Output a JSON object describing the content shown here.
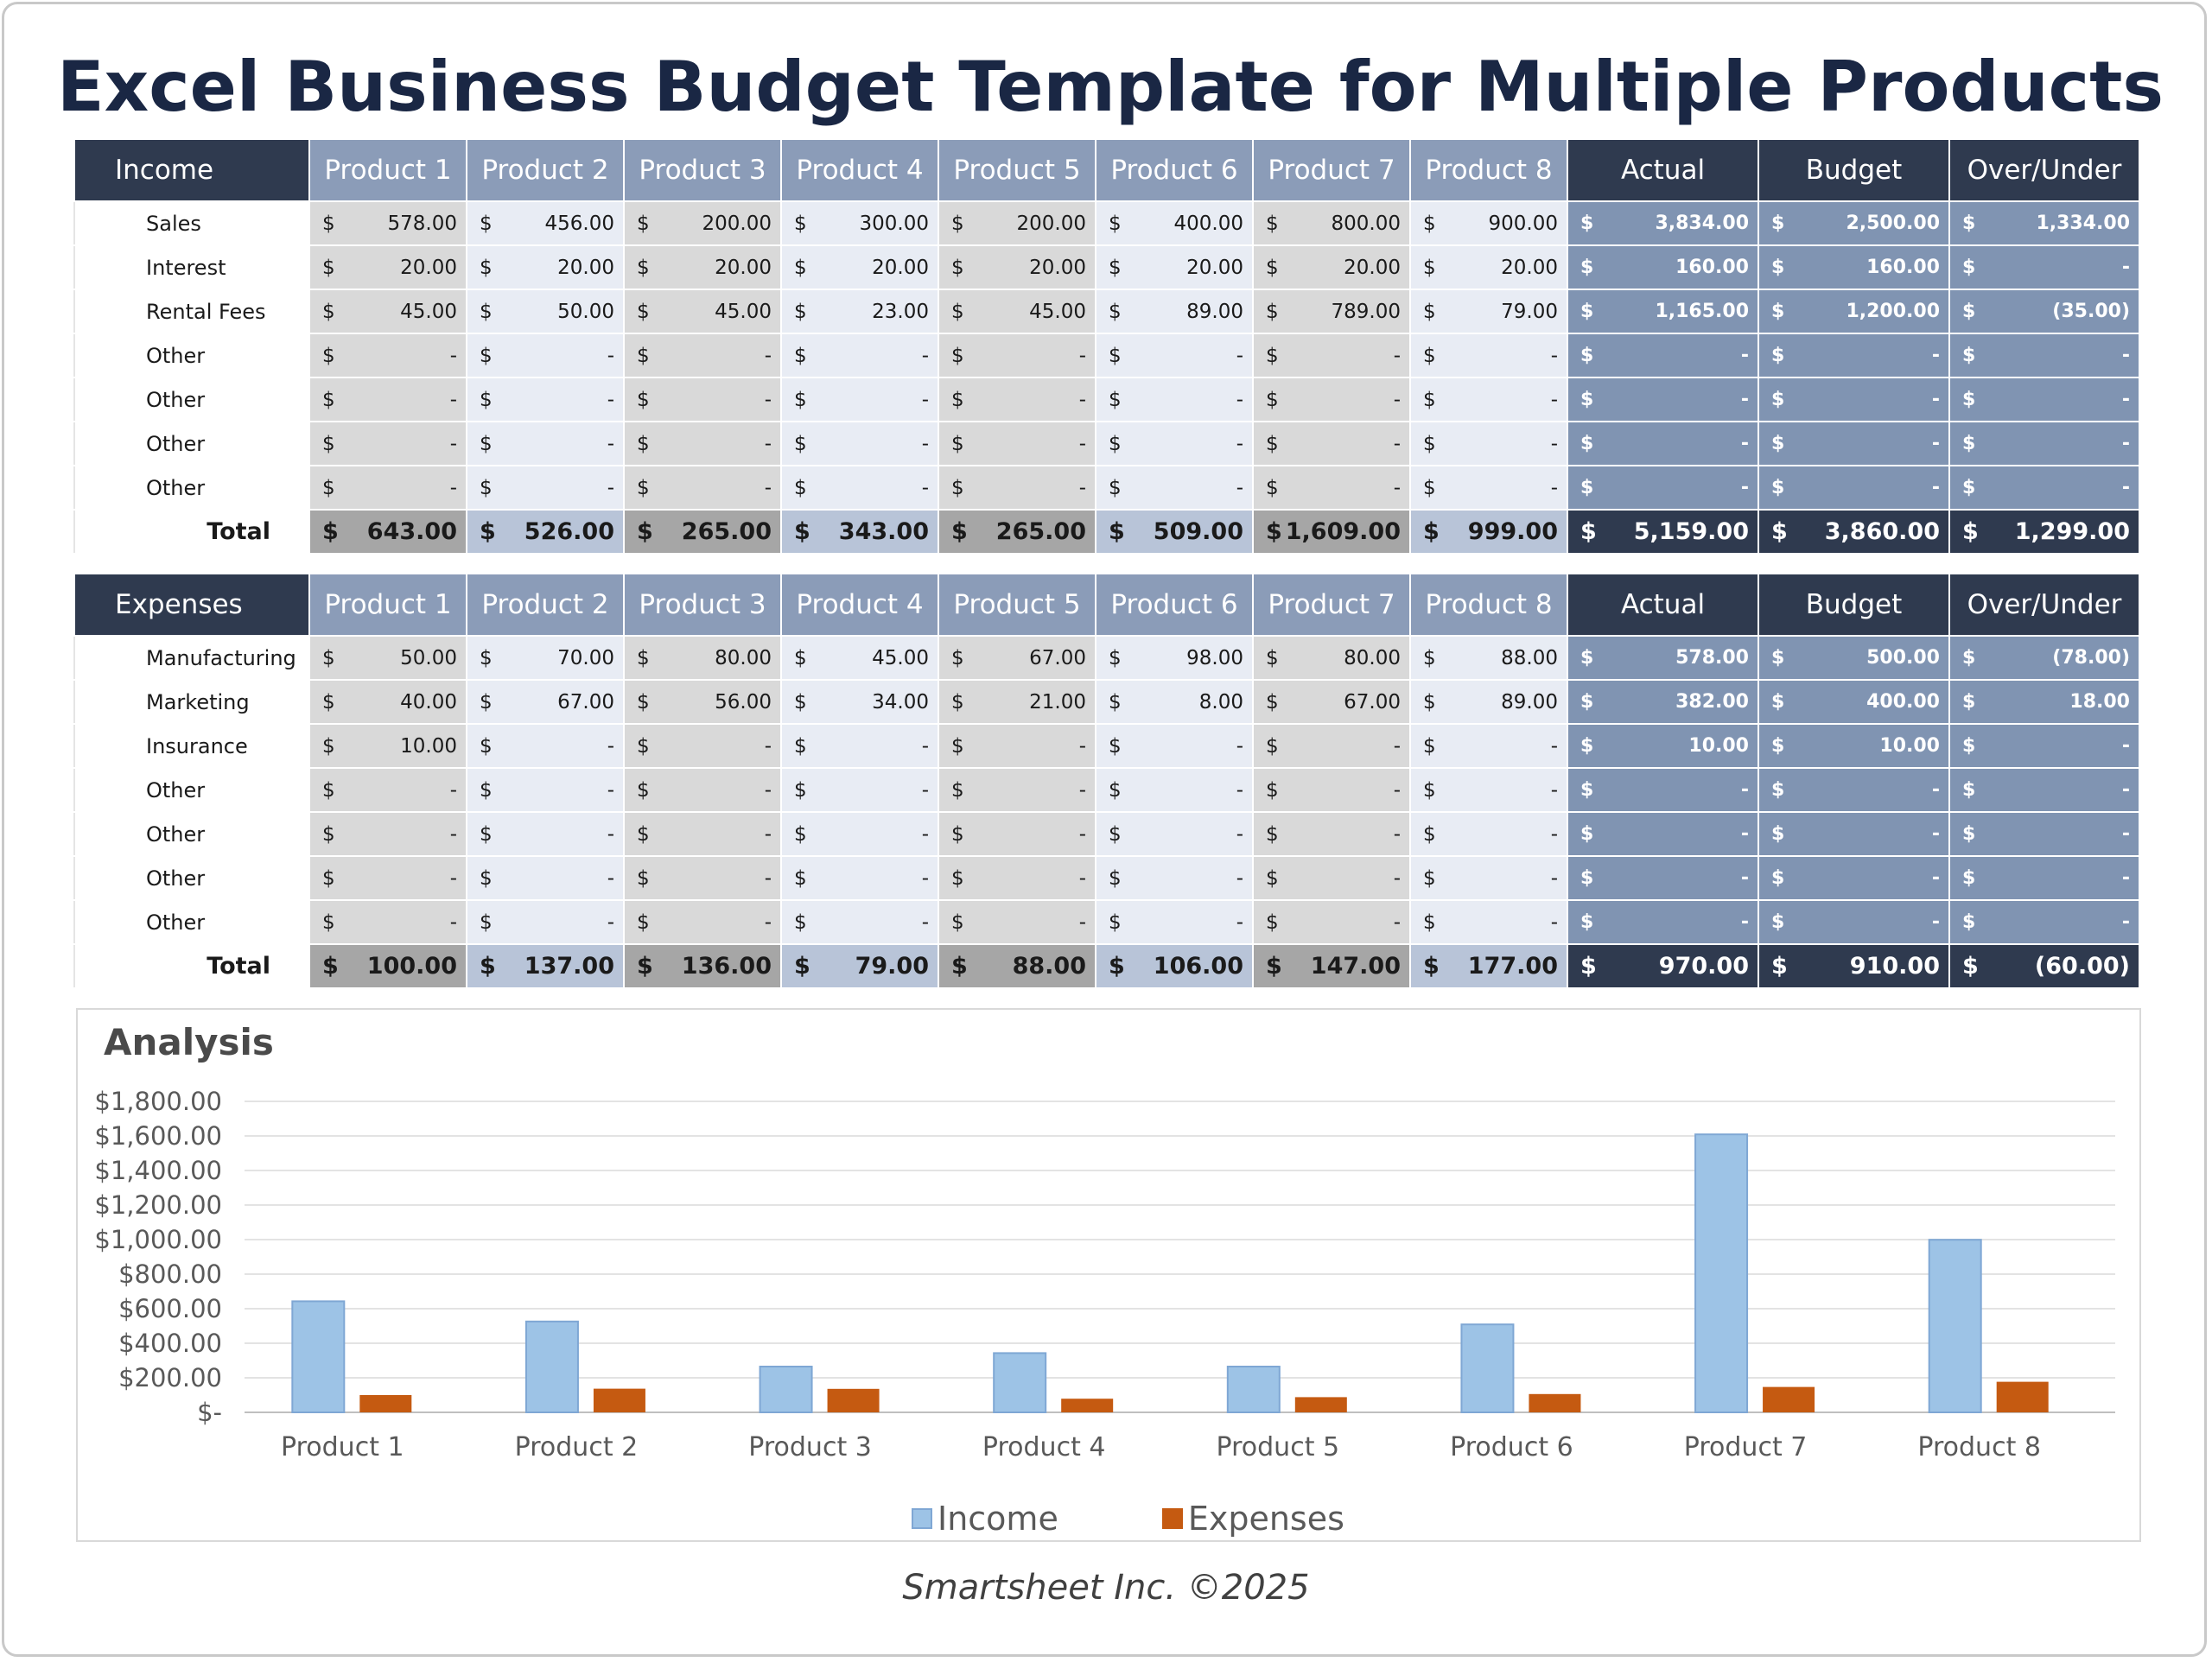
{
  "title": "Excel Business Budget Template for Multiple Products",
  "products": [
    "Product 1",
    "Product 2",
    "Product 3",
    "Product 4",
    "Product 5",
    "Product 6",
    "Product 7",
    "Product 8"
  ],
  "summary_headers": [
    "Actual",
    "Budget",
    "Over/Under"
  ],
  "currency_symbol": "$",
  "income": {
    "header": "Income",
    "rows": [
      {
        "label": "Sales",
        "values": [
          "578.00",
          "456.00",
          "200.00",
          "300.00",
          "200.00",
          "400.00",
          "800.00",
          "900.00"
        ],
        "summary": [
          "3,834.00",
          "2,500.00",
          "1,334.00"
        ]
      },
      {
        "label": "Interest",
        "values": [
          "20.00",
          "20.00",
          "20.00",
          "20.00",
          "20.00",
          "20.00",
          "20.00",
          "20.00"
        ],
        "summary": [
          "160.00",
          "160.00",
          "-"
        ]
      },
      {
        "label": "Rental Fees",
        "values": [
          "45.00",
          "50.00",
          "45.00",
          "23.00",
          "45.00",
          "89.00",
          "789.00",
          "79.00"
        ],
        "summary": [
          "1,165.00",
          "1,200.00",
          "(35.00)"
        ]
      },
      {
        "label": "Other",
        "values": [
          "-",
          "-",
          "-",
          "-",
          "-",
          "-",
          "-",
          "-"
        ],
        "summary": [
          "-",
          "-",
          "-"
        ]
      },
      {
        "label": "Other",
        "values": [
          "-",
          "-",
          "-",
          "-",
          "-",
          "-",
          "-",
          "-"
        ],
        "summary": [
          "-",
          "-",
          "-"
        ]
      },
      {
        "label": "Other",
        "values": [
          "-",
          "-",
          "-",
          "-",
          "-",
          "-",
          "-",
          "-"
        ],
        "summary": [
          "-",
          "-",
          "-"
        ]
      },
      {
        "label": "Other",
        "values": [
          "-",
          "-",
          "-",
          "-",
          "-",
          "-",
          "-",
          "-"
        ],
        "summary": [
          "-",
          "-",
          "-"
        ]
      }
    ],
    "total": {
      "label": "Total",
      "values": [
        "643.00",
        "526.00",
        "265.00",
        "343.00",
        "265.00",
        "509.00",
        "1,609.00",
        "999.00"
      ],
      "summary": [
        "5,159.00",
        "3,860.00",
        "1,299.00"
      ]
    }
  },
  "expenses": {
    "header": "Expenses",
    "rows": [
      {
        "label": "Manufacturing",
        "values": [
          "50.00",
          "70.00",
          "80.00",
          "45.00",
          "67.00",
          "98.00",
          "80.00",
          "88.00"
        ],
        "summary": [
          "578.00",
          "500.00",
          "(78.00)"
        ]
      },
      {
        "label": "Marketing",
        "values": [
          "40.00",
          "67.00",
          "56.00",
          "34.00",
          "21.00",
          "8.00",
          "67.00",
          "89.00"
        ],
        "summary": [
          "382.00",
          "400.00",
          "18.00"
        ]
      },
      {
        "label": "Insurance",
        "values": [
          "10.00",
          "-",
          "-",
          "-",
          "-",
          "-",
          "-",
          "-"
        ],
        "summary": [
          "10.00",
          "10.00",
          "-"
        ]
      },
      {
        "label": "Other",
        "values": [
          "-",
          "-",
          "-",
          "-",
          "-",
          "-",
          "-",
          "-"
        ],
        "summary": [
          "-",
          "-",
          "-"
        ]
      },
      {
        "label": "Other",
        "values": [
          "-",
          "-",
          "-",
          "-",
          "-",
          "-",
          "-",
          "-"
        ],
        "summary": [
          "-",
          "-",
          "-"
        ]
      },
      {
        "label": "Other",
        "values": [
          "-",
          "-",
          "-",
          "-",
          "-",
          "-",
          "-",
          "-"
        ],
        "summary": [
          "-",
          "-",
          "-"
        ]
      },
      {
        "label": "Other",
        "values": [
          "-",
          "-",
          "-",
          "-",
          "-",
          "-",
          "-",
          "-"
        ],
        "summary": [
          "-",
          "-",
          "-"
        ]
      }
    ],
    "total": {
      "label": "Total",
      "values": [
        "100.00",
        "137.00",
        "136.00",
        "79.00",
        "88.00",
        "106.00",
        "147.00",
        "177.00"
      ],
      "summary": [
        "970.00",
        "910.00",
        "(60.00)"
      ]
    }
  },
  "chart_data": {
    "type": "bar",
    "title": "Analysis",
    "categories": [
      "Product 1",
      "Product 2",
      "Product 3",
      "Product 4",
      "Product 5",
      "Product 6",
      "Product 7",
      "Product 8"
    ],
    "series": [
      {
        "name": "Income",
        "values": [
          643,
          526,
          265,
          343,
          265,
          509,
          1609,
          999
        ],
        "color": "#9dc3e6"
      },
      {
        "name": "Expenses",
        "values": [
          100,
          137,
          136,
          79,
          88,
          106,
          147,
          177
        ],
        "color": "#c55a11"
      }
    ],
    "yticks": [
      "$-",
      "$200.00",
      "$400.00",
      "$600.00",
      "$800.00",
      "$1,000.00",
      "$1,200.00",
      "$1,400.00",
      "$1,600.00",
      "$1,800.00"
    ],
    "ylim": [
      0,
      1800
    ],
    "grid": true,
    "legend": "bottom"
  },
  "footer": "Smartsheet Inc. ©2025"
}
